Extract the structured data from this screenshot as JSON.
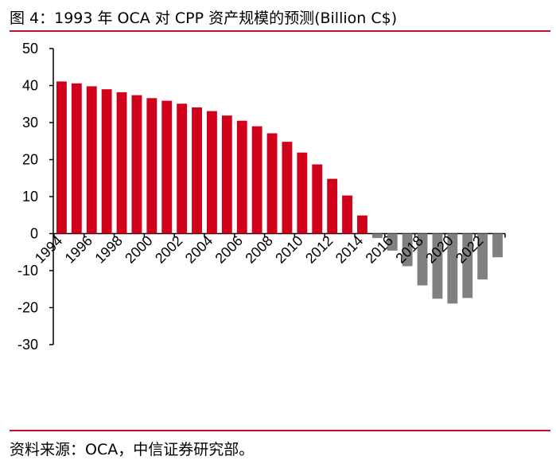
{
  "title": "图 4：1993 年 OCA 对 CPP 资产规模的预测(Billion C$)",
  "source": "资料来源：OCA，中信证券研究部。",
  "colors": {
    "positive": "#d0021b",
    "negative": "#808080",
    "rule": "#c8102e"
  },
  "chart_data": {
    "type": "bar",
    "title": "",
    "xlabel": "",
    "ylabel": "",
    "ylim": [
      -30,
      50
    ],
    "yticks": [
      50,
      40,
      30,
      20,
      10,
      0,
      -10,
      -20,
      -30
    ],
    "grid": false,
    "categories": [
      "1994",
      "1995",
      "1996",
      "1997",
      "1998",
      "1999",
      "2000",
      "2001",
      "2002",
      "2003",
      "2004",
      "2005",
      "2006",
      "2007",
      "2008",
      "2009",
      "2010",
      "2011",
      "2012",
      "2013",
      "2014",
      "2015",
      "2016",
      "2017",
      "2018",
      "2019",
      "2020",
      "2021",
      "2022",
      "2023"
    ],
    "xtick_labels": [
      "1994",
      "1996",
      "1998",
      "2000",
      "2002",
      "2004",
      "2006",
      "2008",
      "2010",
      "2012",
      "2014",
      "2016",
      "2018",
      "2020",
      "2022"
    ],
    "values": [
      41.1,
      40.6,
      39.8,
      39.0,
      38.2,
      37.4,
      36.6,
      35.9,
      35.1,
      34.1,
      33.1,
      31.9,
      30.5,
      29.0,
      27.1,
      24.8,
      21.9,
      18.7,
      14.8,
      10.3,
      4.9,
      -1.2,
      -4.6,
      -8.8,
      -14.0,
      -17.6,
      -18.9,
      -17.4,
      -12.4,
      -6.4
    ]
  }
}
